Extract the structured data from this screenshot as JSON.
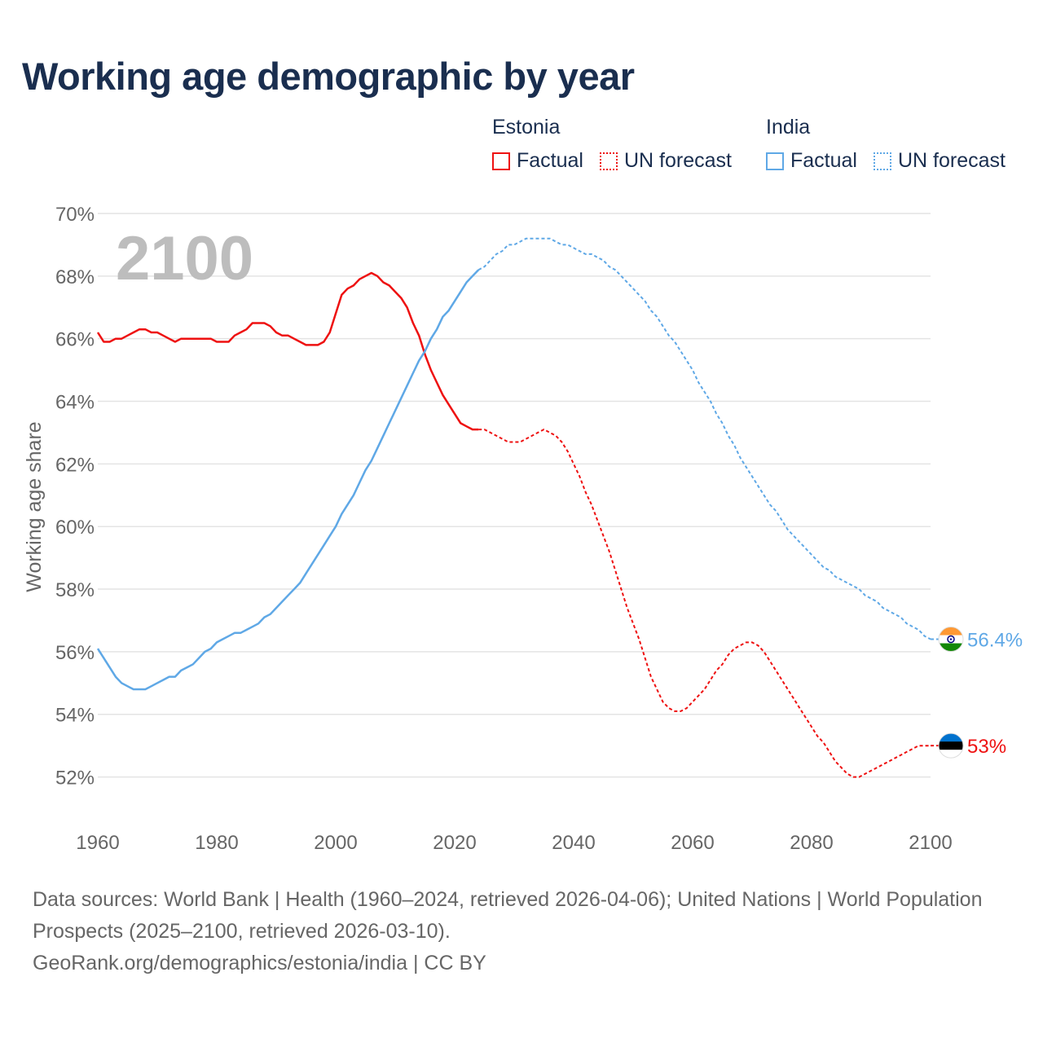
{
  "title": "Working age demographic by year",
  "legend": {
    "estonia": {
      "name": "Estonia",
      "factual": "Factual",
      "forecast": "UN forecast",
      "color": "#ee1111"
    },
    "india": {
      "name": "India",
      "factual": "Factual",
      "forecast": "UN forecast",
      "color": "#5fa8e6"
    }
  },
  "year_overlay": "2100",
  "footer": {
    "sources": "Data sources: World Bank | Health (1960–2024, retrieved 2026-04-06); United Nations | World Population Prospects (2025–2100, retrieved 2026-03-10).",
    "credit": "GeoRank.org/demographics/estonia/india | CC BY"
  },
  "chart_data": {
    "type": "line",
    "title": "Working age demographic by year",
    "xlabel": "",
    "ylabel": "Working age share",
    "xlim": [
      1960,
      2100
    ],
    "ylim": [
      51,
      70
    ],
    "x_ticks": [
      1960,
      1980,
      2000,
      2020,
      2040,
      2060,
      2080,
      2100
    ],
    "y_ticks": [
      52,
      54,
      56,
      58,
      60,
      62,
      64,
      66,
      68,
      70
    ],
    "y_tick_labels": [
      "52%",
      "54%",
      "56%",
      "58%",
      "60%",
      "62%",
      "64%",
      "66%",
      "68%",
      "70%"
    ],
    "grid": true,
    "factual_end_year": 2024,
    "series": [
      {
        "name": "Estonia",
        "color": "#ee1111",
        "end_label": "53%",
        "points": [
          [
            1960,
            66.2
          ],
          [
            1961,
            65.9
          ],
          [
            1962,
            65.9
          ],
          [
            1963,
            66.0
          ],
          [
            1964,
            66.0
          ],
          [
            1965,
            66.1
          ],
          [
            1966,
            66.2
          ],
          [
            1967,
            66.3
          ],
          [
            1968,
            66.3
          ],
          [
            1969,
            66.2
          ],
          [
            1970,
            66.2
          ],
          [
            1971,
            66.1
          ],
          [
            1972,
            66.0
          ],
          [
            1973,
            65.9
          ],
          [
            1974,
            66.0
          ],
          [
            1975,
            66.0
          ],
          [
            1976,
            66.0
          ],
          [
            1977,
            66.0
          ],
          [
            1978,
            66.0
          ],
          [
            1979,
            66.0
          ],
          [
            1980,
            65.9
          ],
          [
            1981,
            65.9
          ],
          [
            1982,
            65.9
          ],
          [
            1983,
            66.1
          ],
          [
            1984,
            66.2
          ],
          [
            1985,
            66.3
          ],
          [
            1986,
            66.5
          ],
          [
            1987,
            66.5
          ],
          [
            1988,
            66.5
          ],
          [
            1989,
            66.4
          ],
          [
            1990,
            66.2
          ],
          [
            1991,
            66.1
          ],
          [
            1992,
            66.1
          ],
          [
            1993,
            66.0
          ],
          [
            1994,
            65.9
          ],
          [
            1995,
            65.8
          ],
          [
            1996,
            65.8
          ],
          [
            1997,
            65.8
          ],
          [
            1998,
            65.9
          ],
          [
            1999,
            66.2
          ],
          [
            2000,
            66.8
          ],
          [
            2001,
            67.4
          ],
          [
            2002,
            67.6
          ],
          [
            2003,
            67.7
          ],
          [
            2004,
            67.9
          ],
          [
            2005,
            68.0
          ],
          [
            2006,
            68.1
          ],
          [
            2007,
            68.0
          ],
          [
            2008,
            67.8
          ],
          [
            2009,
            67.7
          ],
          [
            2010,
            67.5
          ],
          [
            2011,
            67.3
          ],
          [
            2012,
            67.0
          ],
          [
            2013,
            66.5
          ],
          [
            2014,
            66.1
          ],
          [
            2015,
            65.5
          ],
          [
            2016,
            65.0
          ],
          [
            2017,
            64.6
          ],
          [
            2018,
            64.2
          ],
          [
            2019,
            63.9
          ],
          [
            2020,
            63.6
          ],
          [
            2021,
            63.3
          ],
          [
            2022,
            63.2
          ],
          [
            2023,
            63.1
          ],
          [
            2024,
            63.1
          ],
          [
            2025,
            63.1
          ],
          [
            2026,
            63.0
          ],
          [
            2027,
            62.9
          ],
          [
            2028,
            62.8
          ],
          [
            2029,
            62.7
          ],
          [
            2030,
            62.7
          ],
          [
            2031,
            62.7
          ],
          [
            2032,
            62.8
          ],
          [
            2033,
            62.9
          ],
          [
            2034,
            63.0
          ],
          [
            2035,
            63.1
          ],
          [
            2036,
            63.0
          ],
          [
            2037,
            62.9
          ],
          [
            2038,
            62.7
          ],
          [
            2039,
            62.4
          ],
          [
            2040,
            62.0
          ],
          [
            2041,
            61.6
          ],
          [
            2042,
            61.1
          ],
          [
            2043,
            60.7
          ],
          [
            2044,
            60.2
          ],
          [
            2045,
            59.7
          ],
          [
            2046,
            59.2
          ],
          [
            2047,
            58.6
          ],
          [
            2048,
            58.0
          ],
          [
            2049,
            57.4
          ],
          [
            2050,
            56.9
          ],
          [
            2051,
            56.4
          ],
          [
            2052,
            55.8
          ],
          [
            2053,
            55.2
          ],
          [
            2054,
            54.8
          ],
          [
            2055,
            54.4
          ],
          [
            2056,
            54.2
          ],
          [
            2057,
            54.1
          ],
          [
            2058,
            54.1
          ],
          [
            2059,
            54.2
          ],
          [
            2060,
            54.4
          ],
          [
            2061,
            54.6
          ],
          [
            2062,
            54.8
          ],
          [
            2063,
            55.1
          ],
          [
            2064,
            55.4
          ],
          [
            2065,
            55.6
          ],
          [
            2066,
            55.9
          ],
          [
            2067,
            56.1
          ],
          [
            2068,
            56.2
          ],
          [
            2069,
            56.3
          ],
          [
            2070,
            56.3
          ],
          [
            2071,
            56.2
          ],
          [
            2072,
            56.0
          ],
          [
            2073,
            55.7
          ],
          [
            2074,
            55.4
          ],
          [
            2075,
            55.1
          ],
          [
            2076,
            54.8
          ],
          [
            2077,
            54.5
          ],
          [
            2078,
            54.2
          ],
          [
            2079,
            53.9
          ],
          [
            2080,
            53.6
          ],
          [
            2081,
            53.3
          ],
          [
            2082,
            53.1
          ],
          [
            2083,
            52.8
          ],
          [
            2084,
            52.5
          ],
          [
            2085,
            52.3
          ],
          [
            2086,
            52.1
          ],
          [
            2087,
            52.0
          ],
          [
            2088,
            52.0
          ],
          [
            2089,
            52.1
          ],
          [
            2090,
            52.2
          ],
          [
            2091,
            52.3
          ],
          [
            2092,
            52.4
          ],
          [
            2093,
            52.5
          ],
          [
            2094,
            52.6
          ],
          [
            2095,
            52.7
          ],
          [
            2096,
            52.8
          ],
          [
            2097,
            52.9
          ],
          [
            2098,
            53.0
          ],
          [
            2099,
            53.0
          ],
          [
            2100,
            53.0
          ]
        ]
      },
      {
        "name": "India",
        "color": "#5fa8e6",
        "end_label": "56.4%",
        "points": [
          [
            1960,
            56.1
          ],
          [
            1961,
            55.8
          ],
          [
            1962,
            55.5
          ],
          [
            1963,
            55.2
          ],
          [
            1964,
            55.0
          ],
          [
            1965,
            54.9
          ],
          [
            1966,
            54.8
          ],
          [
            1967,
            54.8
          ],
          [
            1968,
            54.8
          ],
          [
            1969,
            54.9
          ],
          [
            1970,
            55.0
          ],
          [
            1971,
            55.1
          ],
          [
            1972,
            55.2
          ],
          [
            1973,
            55.2
          ],
          [
            1974,
            55.4
          ],
          [
            1975,
            55.5
          ],
          [
            1976,
            55.6
          ],
          [
            1977,
            55.8
          ],
          [
            1978,
            56.0
          ],
          [
            1979,
            56.1
          ],
          [
            1980,
            56.3
          ],
          [
            1981,
            56.4
          ],
          [
            1982,
            56.5
          ],
          [
            1983,
            56.6
          ],
          [
            1984,
            56.6
          ],
          [
            1985,
            56.7
          ],
          [
            1986,
            56.8
          ],
          [
            1987,
            56.9
          ],
          [
            1988,
            57.1
          ],
          [
            1989,
            57.2
          ],
          [
            1990,
            57.4
          ],
          [
            1991,
            57.6
          ],
          [
            1992,
            57.8
          ],
          [
            1993,
            58.0
          ],
          [
            1994,
            58.2
          ],
          [
            1995,
            58.5
          ],
          [
            1996,
            58.8
          ],
          [
            1997,
            59.1
          ],
          [
            1998,
            59.4
          ],
          [
            1999,
            59.7
          ],
          [
            2000,
            60.0
          ],
          [
            2001,
            60.4
          ],
          [
            2002,
            60.7
          ],
          [
            2003,
            61.0
          ],
          [
            2004,
            61.4
          ],
          [
            2005,
            61.8
          ],
          [
            2006,
            62.1
          ],
          [
            2007,
            62.5
          ],
          [
            2008,
            62.9
          ],
          [
            2009,
            63.3
          ],
          [
            2010,
            63.7
          ],
          [
            2011,
            64.1
          ],
          [
            2012,
            64.5
          ],
          [
            2013,
            64.9
          ],
          [
            2014,
            65.3
          ],
          [
            2015,
            65.6
          ],
          [
            2016,
            66.0
          ],
          [
            2017,
            66.3
          ],
          [
            2018,
            66.7
          ],
          [
            2019,
            66.9
          ],
          [
            2020,
            67.2
          ],
          [
            2021,
            67.5
          ],
          [
            2022,
            67.8
          ],
          [
            2023,
            68.0
          ],
          [
            2024,
            68.2
          ],
          [
            2025,
            68.3
          ],
          [
            2026,
            68.5
          ],
          [
            2027,
            68.7
          ],
          [
            2028,
            68.8
          ],
          [
            2029,
            69.0
          ],
          [
            2030,
            69.0
          ],
          [
            2031,
            69.1
          ],
          [
            2032,
            69.2
          ],
          [
            2033,
            69.2
          ],
          [
            2034,
            69.2
          ],
          [
            2035,
            69.2
          ],
          [
            2036,
            69.2
          ],
          [
            2037,
            69.1
          ],
          [
            2038,
            69.0
          ],
          [
            2039,
            69.0
          ],
          [
            2040,
            68.9
          ],
          [
            2041,
            68.8
          ],
          [
            2042,
            68.7
          ],
          [
            2043,
            68.7
          ],
          [
            2044,
            68.6
          ],
          [
            2045,
            68.5
          ],
          [
            2046,
            68.3
          ],
          [
            2047,
            68.2
          ],
          [
            2048,
            68.0
          ],
          [
            2049,
            67.8
          ],
          [
            2050,
            67.6
          ],
          [
            2051,
            67.4
          ],
          [
            2052,
            67.2
          ],
          [
            2053,
            66.9
          ],
          [
            2054,
            66.7
          ],
          [
            2055,
            66.4
          ],
          [
            2056,
            66.1
          ],
          [
            2057,
            65.9
          ],
          [
            2058,
            65.6
          ],
          [
            2059,
            65.3
          ],
          [
            2060,
            65.0
          ],
          [
            2061,
            64.6
          ],
          [
            2062,
            64.3
          ],
          [
            2063,
            64.0
          ],
          [
            2064,
            63.6
          ],
          [
            2065,
            63.3
          ],
          [
            2066,
            62.9
          ],
          [
            2067,
            62.6
          ],
          [
            2068,
            62.2
          ],
          [
            2069,
            61.9
          ],
          [
            2070,
            61.6
          ],
          [
            2071,
            61.3
          ],
          [
            2072,
            61.0
          ],
          [
            2073,
            60.7
          ],
          [
            2074,
            60.5
          ],
          [
            2075,
            60.2
          ],
          [
            2076,
            59.9
          ],
          [
            2077,
            59.7
          ],
          [
            2078,
            59.5
          ],
          [
            2079,
            59.3
          ],
          [
            2080,
            59.1
          ],
          [
            2081,
            58.9
          ],
          [
            2082,
            58.7
          ],
          [
            2083,
            58.6
          ],
          [
            2084,
            58.4
          ],
          [
            2085,
            58.3
          ],
          [
            2086,
            58.2
          ],
          [
            2087,
            58.1
          ],
          [
            2088,
            58.0
          ],
          [
            2089,
            57.8
          ],
          [
            2090,
            57.7
          ],
          [
            2091,
            57.6
          ],
          [
            2092,
            57.4
          ],
          [
            2093,
            57.3
          ],
          [
            2094,
            57.2
          ],
          [
            2095,
            57.1
          ],
          [
            2096,
            56.9
          ],
          [
            2097,
            56.8
          ],
          [
            2098,
            56.7
          ],
          [
            2099,
            56.5
          ],
          [
            2100,
            56.4
          ]
        ]
      }
    ]
  }
}
